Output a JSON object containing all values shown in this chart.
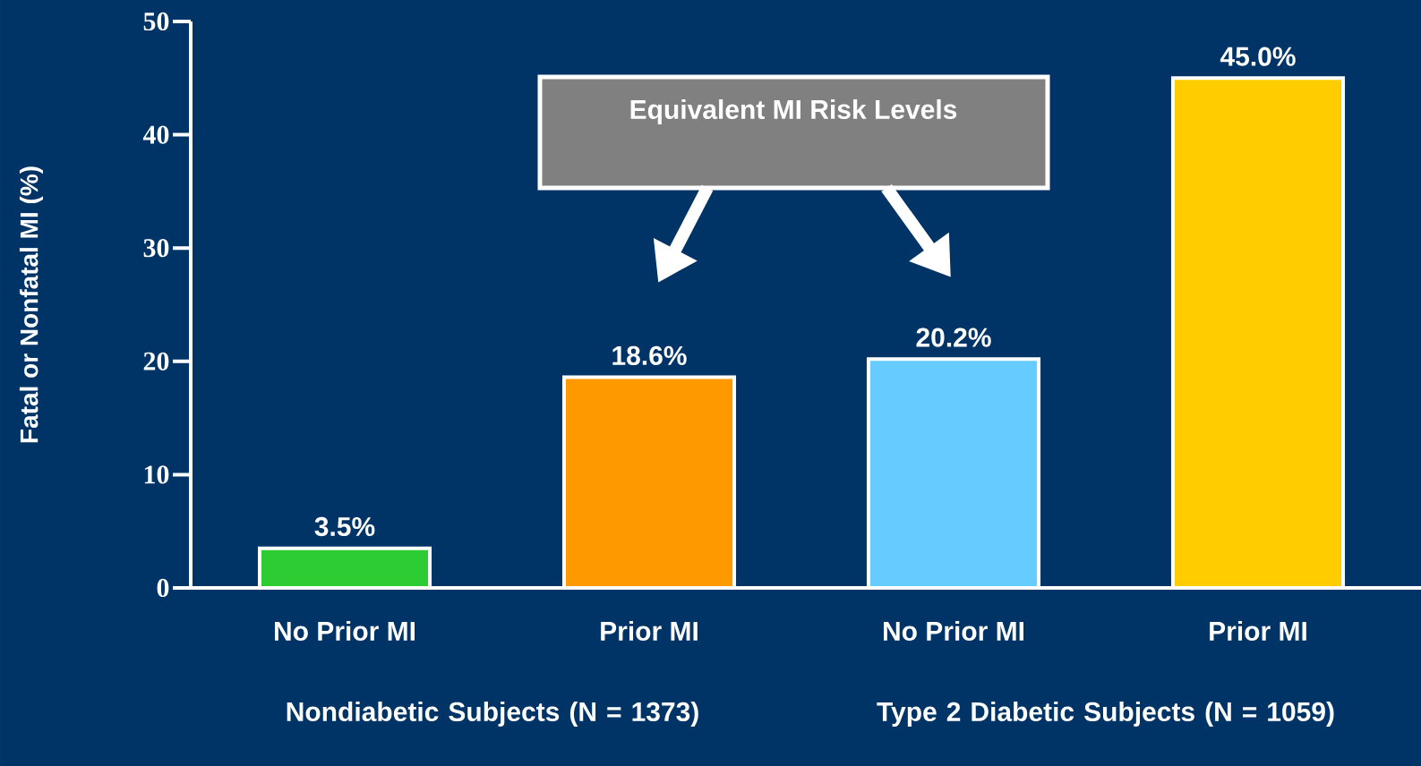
{
  "chart_data": {
    "type": "bar",
    "categories": [
      "No Prior MI",
      "Prior MI",
      "No Prior MI",
      "Prior MI"
    ],
    "values": [
      3.5,
      18.6,
      20.2,
      45.0
    ],
    "colors": [
      "#2ecc33",
      "#ff9900",
      "#66ccff",
      "#ffcc00"
    ],
    "value_labels": [
      "3.5%",
      "18.6%",
      "20.2%",
      "45.0%"
    ],
    "ylabel": "Fatal or Nonfatal MI (%)",
    "ylim": [
      0,
      50
    ],
    "yticks": [
      0,
      10,
      20,
      30,
      40,
      50
    ],
    "annotations": [
      "Equivalent MI Risk Levels",
      "Nondiabetic Subjects (N = 1373)",
      "Type 2 Diabetic Subjects (N = 1059)"
    ]
  }
}
